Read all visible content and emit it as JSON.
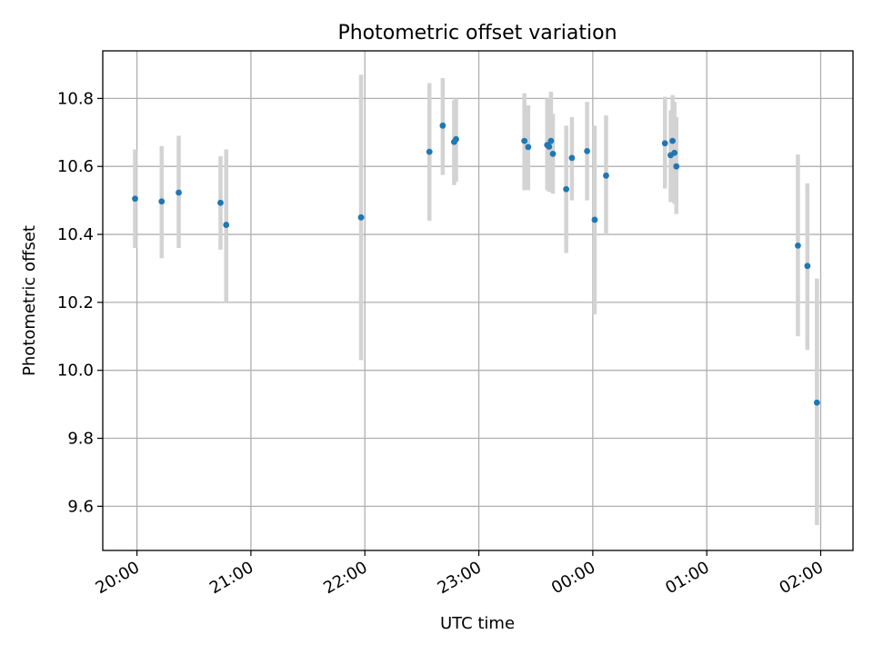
{
  "chart_data": {
    "type": "scatter",
    "title": "Photometric offset variation",
    "xlabel": "UTC time",
    "ylabel": "Photometric offset",
    "x_axis_kind": "time",
    "x_ticks": [
      {
        "time": "20:00",
        "label": "20:00"
      },
      {
        "time": "21:00",
        "label": "21:00"
      },
      {
        "time": "22:00",
        "label": "22:00"
      },
      {
        "time": "23:00",
        "label": "23:00"
      },
      {
        "time": "24:00",
        "label": "00:00"
      },
      {
        "time": "25:00",
        "label": "01:00"
      },
      {
        "time": "26:00",
        "label": "02:00"
      }
    ],
    "x_range": [
      "19:42",
      "26:17"
    ],
    "ylim": [
      9.47,
      10.94
    ],
    "y_ticks": [
      9.6,
      9.8,
      10.0,
      10.2,
      10.4,
      10.6,
      10.8
    ],
    "y_tick_labels": [
      "9.6",
      "9.8",
      "10.0",
      "10.2",
      "10.4",
      "10.6",
      "10.8"
    ],
    "grid": true,
    "colors": {
      "points": "#1f77b4",
      "error_bars": "#d3d3d3"
    },
    "points": [
      {
        "time": "19:59",
        "y": 10.505,
        "lo": 10.36,
        "hi": 10.65
      },
      {
        "time": "20:13",
        "y": 10.497,
        "lo": 10.33,
        "hi": 10.66
      },
      {
        "time": "20:22",
        "y": 10.523,
        "lo": 10.36,
        "hi": 10.69
      },
      {
        "time": "20:44",
        "y": 10.493,
        "lo": 10.355,
        "hi": 10.63
      },
      {
        "time": "20:47",
        "y": 10.428,
        "lo": 10.2,
        "hi": 10.65
      },
      {
        "time": "21:58",
        "y": 10.45,
        "lo": 10.03,
        "hi": 10.87
      },
      {
        "time": "22:34",
        "y": 10.643,
        "lo": 10.44,
        "hi": 10.845
      },
      {
        "time": "22:41",
        "y": 10.72,
        "lo": 10.575,
        "hi": 10.86
      },
      {
        "time": "22:47",
        "y": 10.672,
        "lo": 10.545,
        "hi": 10.795
      },
      {
        "time": "22:48",
        "y": 10.68,
        "lo": 10.555,
        "hi": 10.8
      },
      {
        "time": "23:24",
        "y": 10.675,
        "lo": 10.53,
        "hi": 10.815
      },
      {
        "time": "23:26",
        "y": 10.657,
        "lo": 10.53,
        "hi": 10.78
      },
      {
        "time": "23:36",
        "y": 10.663,
        "lo": 10.53,
        "hi": 10.8
      },
      {
        "time": "23:37",
        "y": 10.658,
        "lo": 10.525,
        "hi": 10.79
      },
      {
        "time": "23:38",
        "y": 10.675,
        "lo": 10.525,
        "hi": 10.82
      },
      {
        "time": "23:39",
        "y": 10.637,
        "lo": 10.52,
        "hi": 10.755
      },
      {
        "time": "23:46",
        "y": 10.533,
        "lo": 10.345,
        "hi": 10.72
      },
      {
        "time": "23:49",
        "y": 10.625,
        "lo": 10.5,
        "hi": 10.745
      },
      {
        "time": "23:57",
        "y": 10.645,
        "lo": 10.5,
        "hi": 10.79
      },
      {
        "time": "24:01",
        "y": 10.443,
        "lo": 10.165,
        "hi": 10.72
      },
      {
        "time": "24:07",
        "y": 10.573,
        "lo": 10.4,
        "hi": 10.75
      },
      {
        "time": "24:38",
        "y": 10.668,
        "lo": 10.535,
        "hi": 10.805
      },
      {
        "time": "24:41",
        "y": 10.633,
        "lo": 10.495,
        "hi": 10.765
      },
      {
        "time": "24:42",
        "y": 10.675,
        "lo": 10.54,
        "hi": 10.81
      },
      {
        "time": "24:43",
        "y": 10.64,
        "lo": 10.49,
        "hi": 10.79
      },
      {
        "time": "24:44",
        "y": 10.6,
        "lo": 10.46,
        "hi": 10.745
      },
      {
        "time": "25:48",
        "y": 10.367,
        "lo": 10.1,
        "hi": 10.635
      },
      {
        "time": "25:53",
        "y": 10.307,
        "lo": 10.06,
        "hi": 10.55
      },
      {
        "time": "25:58",
        "y": 9.905,
        "lo": 9.545,
        "hi": 10.27
      }
    ]
  }
}
